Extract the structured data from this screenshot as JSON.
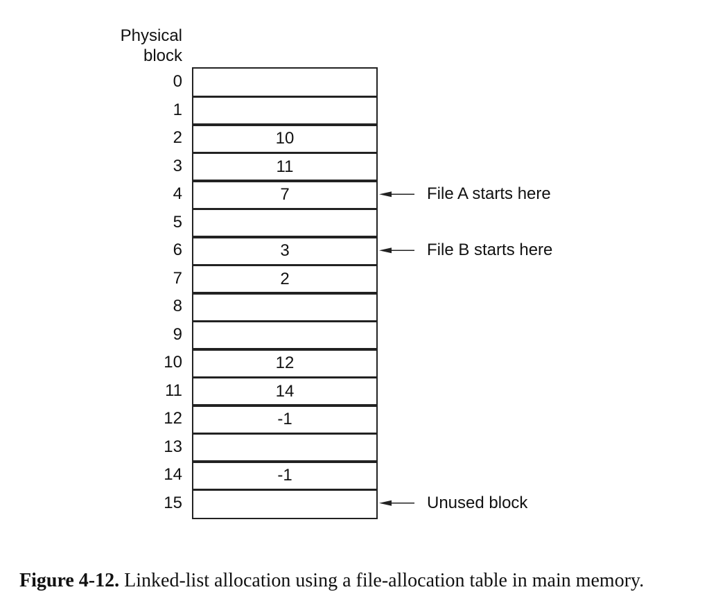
{
  "header": {
    "line1": "Physical",
    "line2": "block"
  },
  "table": {
    "entries": [
      {
        "index": "0",
        "value": ""
      },
      {
        "index": "1",
        "value": ""
      },
      {
        "index": "2",
        "value": "10"
      },
      {
        "index": "3",
        "value": "11"
      },
      {
        "index": "4",
        "value": "7"
      },
      {
        "index": "5",
        "value": ""
      },
      {
        "index": "6",
        "value": "3"
      },
      {
        "index": "7",
        "value": "2"
      },
      {
        "index": "8",
        "value": ""
      },
      {
        "index": "9",
        "value": ""
      },
      {
        "index": "10",
        "value": "12"
      },
      {
        "index": "11",
        "value": "14"
      },
      {
        "index": "12",
        "value": "-1"
      },
      {
        "index": "13",
        "value": ""
      },
      {
        "index": "14",
        "value": "-1"
      },
      {
        "index": "15",
        "value": ""
      }
    ]
  },
  "annotations": [
    {
      "row": 4,
      "text": "File A starts here"
    },
    {
      "row": 6,
      "text": "File B starts here"
    },
    {
      "row": 15,
      "text": "Unused block"
    }
  ],
  "caption": {
    "label": "Figure 4-12.",
    "text": "Linked-list allocation using a file-allocation table in main memory."
  }
}
